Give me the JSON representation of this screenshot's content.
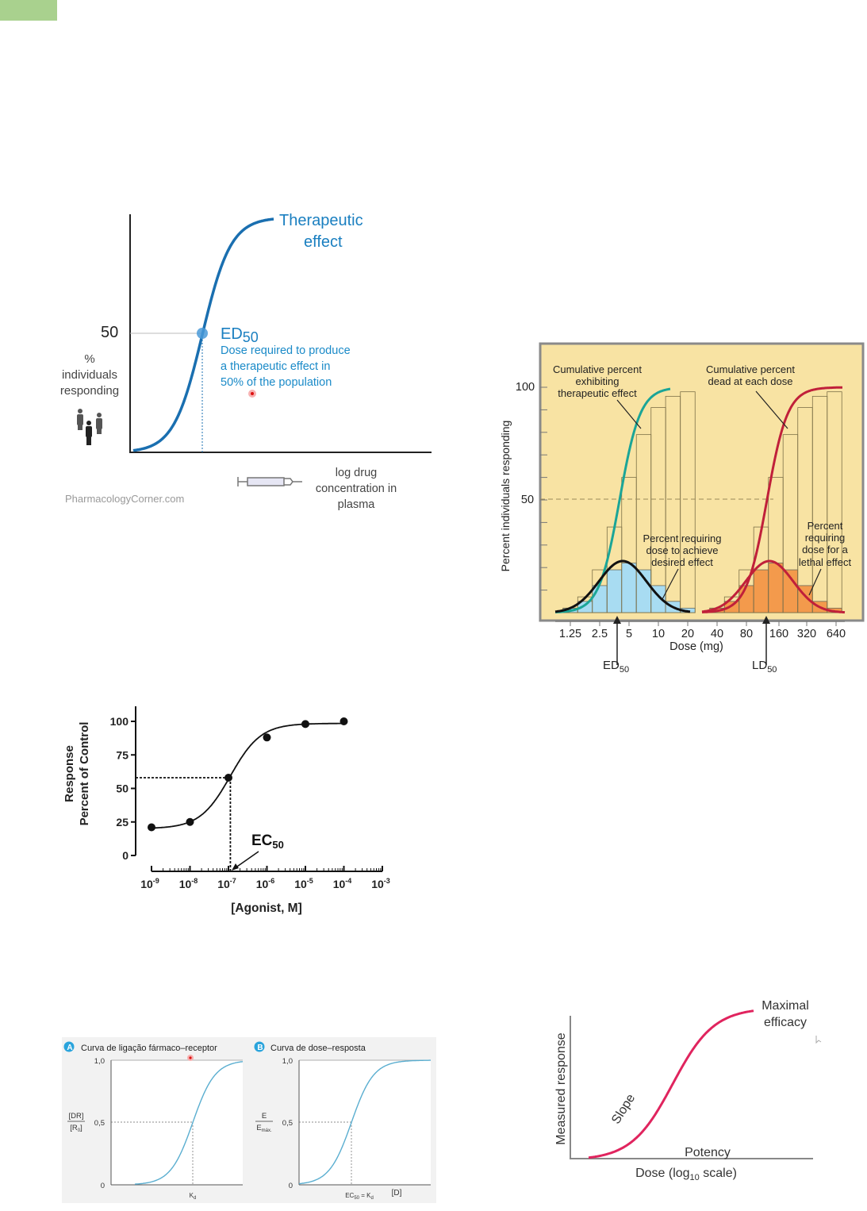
{
  "colors": {
    "corner_tab": "#a9d18e",
    "therapeutic_blue": "#1a6fb0",
    "panel_yellow": "#f8e3a3",
    "teal": "#1ba597",
    "red": "#c0203a",
    "light_blue_fill": "#a8dcf2",
    "orange_fill": "#f39a4c",
    "magenta": "#e0245e",
    "binding_blue": "#5aaed0"
  },
  "chart_data": [
    {
      "type": "line",
      "curve_label": [
        "Therapeutic",
        "effect"
      ],
      "y_tick": "50",
      "ylabel": [
        "%",
        "individuals",
        "responding"
      ],
      "xlabel": [
        "log drug",
        "concentration in",
        "plasma"
      ],
      "marker": {
        "label": "ED",
        "sub": "50",
        "y": 50,
        "description": [
          "Dose required to produce",
          "a therapeutic effect in",
          "50% of the population"
        ]
      },
      "credit": "PharmacologyCorner.com",
      "icons": [
        "people-icon",
        "syringe-icon"
      ]
    },
    {
      "type": "bar",
      "ylabel": "Percent individuals responding",
      "xlabel": "Dose (mg)",
      "x_scale": "log2",
      "y_ticks": [
        "100",
        "50"
      ],
      "x_ticks": [
        "1.25",
        "2.5",
        "5",
        "10",
        "20",
        "40",
        "80",
        "160",
        "320",
        "640"
      ],
      "therapeutic_hist": {
        "doses": [
          1.25,
          1.77,
          2.5,
          3.54,
          5,
          7.07,
          10,
          14.1,
          20
        ],
        "values": [
          2,
          5,
          12,
          19,
          22,
          19,
          12,
          5,
          2
        ]
      },
      "lethal_hist": {
        "doses": [
          40,
          56.6,
          80,
          113,
          160,
          226,
          320,
          453,
          640
        ],
        "values": [
          2,
          5,
          12,
          19,
          22,
          19,
          12,
          5,
          2
        ]
      },
      "ed50_mg": 4,
      "ld50_mg": 130,
      "annotations": {
        "cum_ther": [
          "Cumulative percent",
          "exhibiting",
          "therapeutic effect"
        ],
        "cum_dead": [
          "Cumulative percent",
          "dead at each dose"
        ],
        "req_desired": [
          "Percent requiring",
          "dose to achieve",
          "desired effect"
        ],
        "req_lethal": [
          "Percent",
          "requiring",
          "dose for a",
          "lethal effect"
        ],
        "ed50": {
          "main": "ED",
          "sub": "50"
        },
        "ld50": {
          "main": "LD",
          "sub": "50"
        }
      }
    },
    {
      "type": "scatter",
      "ylabel": [
        "Response",
        "Percent of Control"
      ],
      "xlabel": "[Agonist, M]",
      "x_scale": "log10",
      "y_ticks": [
        "100",
        "75",
        "50",
        "25",
        "0"
      ],
      "x_ticks": [
        {
          "b": "10",
          "e": "-9"
        },
        {
          "b": "10",
          "e": "-8"
        },
        {
          "b": "10",
          "e": "-7"
        },
        {
          "b": "10",
          "e": "-6"
        },
        {
          "b": "10",
          "e": "-5"
        },
        {
          "b": "10",
          "e": "-4"
        },
        {
          "b": "10",
          "e": "-3"
        }
      ],
      "x_log": [
        -9,
        -8,
        -7,
        -6,
        -5,
        -4
      ],
      "y": [
        21,
        25,
        58,
        88,
        98,
        100
      ],
      "ylim": [
        0,
        100
      ],
      "ec50": {
        "main": "EC",
        "sub": "50",
        "log_x": -6.95,
        "y": 58
      }
    },
    {
      "type": "line",
      "panels": [
        {
          "badge": "A",
          "title": "Curva de ligação fármaco–receptor",
          "ylabel_num": "[DR]",
          "ylabel_den": "[R",
          "ylabel_den_sub": "0",
          "y_ticks": [
            "1,0",
            "0,5",
            "0"
          ],
          "x_marker": "K",
          "x_marker_sub": "d"
        },
        {
          "badge": "B",
          "title": "Curva de dose–resposta",
          "ylabel_num": "E",
          "ylabel_den": "E",
          "ylabel_den_sub": "máx.",
          "y_ticks": [
            "1,0",
            "0,5",
            "0"
          ],
          "x_marker": "EC",
          "x_marker_sub": "50",
          "x_marker_tail": " = K",
          "x_marker_tail_sub": "d",
          "xlabel": "[D]"
        }
      ]
    },
    {
      "type": "line",
      "labels": {
        "maximal": [
          "Maximal",
          "efficacy"
        ],
        "slope": "Slope",
        "potency": "Potency"
      },
      "ylabel": "Measured response",
      "xlabel": {
        "pre": "Dose (log",
        "sub": "10",
        "post": " scale)"
      }
    }
  ]
}
